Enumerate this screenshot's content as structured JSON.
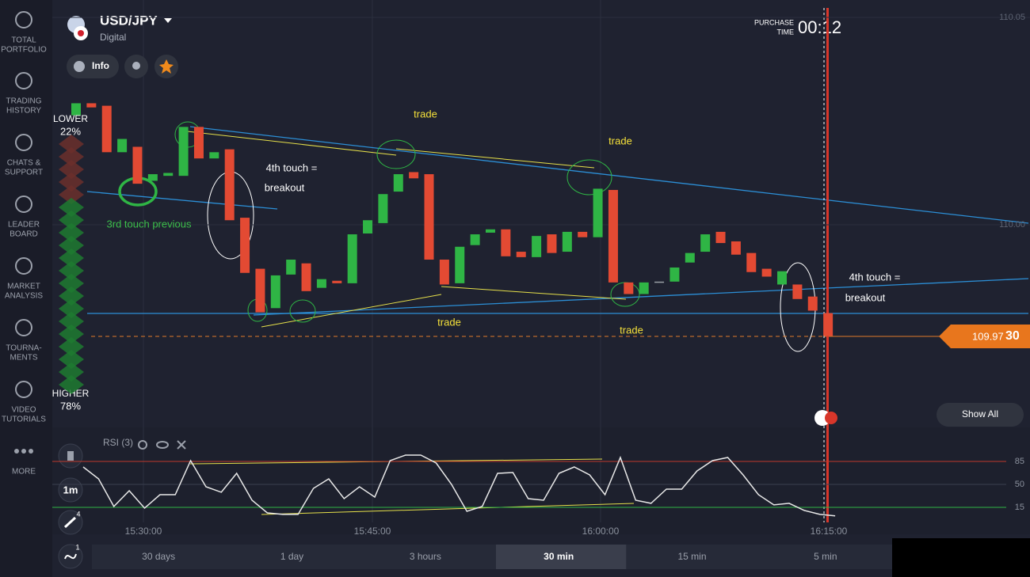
{
  "sidebar": [
    {
      "lines": [
        "TOTAL",
        "PORTFOLIO"
      ]
    },
    {
      "lines": [
        "TRADING",
        "HISTORY"
      ]
    },
    {
      "lines": [
        "CHATS &",
        "SUPPORT"
      ]
    },
    {
      "lines": [
        "LEADER",
        "BOARD"
      ]
    },
    {
      "lines": [
        "MARKET",
        "ANALYSIS"
      ]
    },
    {
      "lines": [
        "TOURNA-",
        "MENTS"
      ]
    },
    {
      "lines": [
        "VIDEO",
        "TUTORIALS"
      ]
    },
    {
      "lines": [
        "MORE"
      ]
    }
  ],
  "header": {
    "asset": "USD/JPY",
    "kind": "Digital",
    "info": "Info",
    "purchase_label": [
      "PURCHASE",
      "TIME"
    ],
    "purchase_time": "00:12"
  },
  "sentiment": {
    "lower": {
      "label": "LOWER",
      "percent": "22%"
    },
    "higher": {
      "label": "HIGHER",
      "percent": "78%"
    }
  },
  "chart": {
    "price_ticks": [
      {
        "value": 110.05,
        "label": "110.05"
      },
      {
        "value": 110,
        "label": "110.00"
      }
    ],
    "current_price": {
      "value": 109.973,
      "label_main": "109.97",
      "label_end": "30"
    },
    "candles": [
      [
        110.0264,
        110.0293
      ],
      [
        110.0293,
        110.0283
      ],
      [
        110.0287,
        110.0175
      ],
      [
        110.0175,
        110.0207
      ],
      [
        110.0188,
        110.0099
      ],
      [
        110.0106,
        110.0122
      ],
      [
        110.0118,
        110.0125
      ],
      [
        110.0118,
        110.0236
      ],
      [
        110.0236,
        110.016
      ],
      [
        110.016,
        110.0175
      ],
      [
        110.0182,
        110.0011
      ],
      [
        110.0017,
        109.9884
      ],
      [
        109.9894,
        109.9789
      ],
      [
        109.9799,
        109.9878
      ],
      [
        109.988,
        109.9916
      ],
      [
        109.9907,
        109.984
      ],
      [
        109.9848,
        109.9869
      ],
      [
        109.9865,
        109.9859
      ],
      [
        109.9859,
        109.9977
      ],
      [
        109.9979,
        110.0011
      ],
      [
        110.0004,
        110.0074
      ],
      [
        110.008,
        110.0122
      ],
      [
        110.0127,
        110.0112
      ],
      [
        110.0122,
        109.9916
      ],
      [
        109.9916,
        109.9856
      ],
      [
        109.9859,
        109.9947
      ],
      [
        109.9951,
        109.9977
      ],
      [
        109.9981,
        109.9989
      ],
      [
        109.9989,
        109.9924
      ],
      [
        109.9935,
        109.9922
      ],
      [
        109.9922,
        109.9973
      ],
      [
        109.9977,
        109.9932
      ],
      [
        109.9935,
        109.9983
      ],
      [
        109.9983,
        109.997
      ],
      [
        109.997,
        110.0087
      ],
      [
        110.0084,
        109.9861
      ],
      [
        109.9861,
        109.9833
      ],
      [
        109.9833,
        109.9861
      ],
      [
        109.9863,
        109.9863
      ],
      [
        109.9863,
        109.9897
      ],
      [
        109.9909,
        109.9932
      ],
      [
        109.9935,
        109.9977
      ],
      [
        109.9983,
        109.9956
      ],
      [
        109.996,
        109.9928
      ],
      [
        109.9932,
        109.9886
      ],
      [
        109.9894,
        109.9875
      ],
      [
        109.9856,
        109.9888
      ],
      [
        109.9856,
        109.9821
      ],
      [
        109.9827,
        109.9793
      ],
      [
        109.9787,
        109.9732
      ]
    ],
    "up_color": "#2fb545",
    "down_color": "#e34a33",
    "flat_color": "#9aa0a6",
    "time_ticks": [
      "15:30:00",
      "15:45:00",
      "16:00:00",
      "16:15:00"
    ],
    "annotations": [
      {
        "text": "trade",
        "color": "#f5e13a"
      },
      {
        "text": "trade",
        "color": "#f5e13a"
      },
      {
        "text": "trade",
        "color": "#f5e13a"
      },
      {
        "text": "trade",
        "color": "#f5e13a"
      },
      {
        "text": "4th touch =",
        "color": "#ffffff"
      },
      {
        "text": "breakout",
        "color": "#ffffff"
      },
      {
        "text": "3rd touch previous",
        "color": "#3cbf4a"
      },
      {
        "text": "4th touch =",
        "color": "#ffffff"
      },
      {
        "text": "breakout",
        "color": "#ffffff"
      }
    ],
    "show_all": "Show All"
  },
  "rsi": {
    "label": "RSI (3)",
    "yticks": [
      85,
      50,
      15
    ],
    "values": [
      76.6,
      58.5,
      16.3,
      40.4,
      13.8,
      34.3,
      34.3,
      86.2,
      46.4,
      38.0,
      66.9,
      25.9,
      6.6,
      4.2,
      4.2,
      44.0,
      58.5,
      28.3,
      46.4,
      30.7,
      86.2,
      94.6,
      94.6,
      82.6,
      50.0,
      9.0,
      16.3,
      66.9,
      68.1,
      28.3,
      25.9,
      66.9,
      76.6,
      64.5,
      34.3,
      91.0,
      25.9,
      21.1,
      42.8,
      42.8,
      70.5,
      86.2,
      91.0,
      64.5,
      34.3,
      18.7,
      21.1,
      10.2,
      4.2,
      2.0
    ]
  },
  "tools": {
    "interval": "1m",
    "drawings_badge": "4",
    "indicators_badge": "1"
  },
  "periods": {
    "items": [
      "30 days",
      "1 day",
      "3 hours",
      "30 min",
      "15 min",
      "5 min"
    ],
    "active": 3
  }
}
